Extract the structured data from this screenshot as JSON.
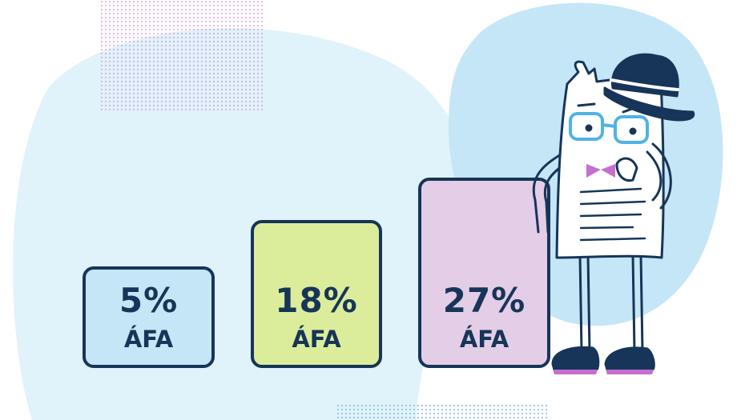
{
  "rates": [
    {
      "value": "5%",
      "label": "ÁFA",
      "color": "#c5e6f6"
    },
    {
      "value": "18%",
      "label": "ÁFA",
      "color": "#dbed9a"
    },
    {
      "value": "27%",
      "label": "ÁFA",
      "color": "#e4cde6"
    }
  ],
  "colors": {
    "text": "#163558",
    "blob_light": "#e0f2fa",
    "blob_blue": "#c5e6f6",
    "dots_pink": "#d98ad0",
    "dots_blue": "#7fb8e6"
  }
}
